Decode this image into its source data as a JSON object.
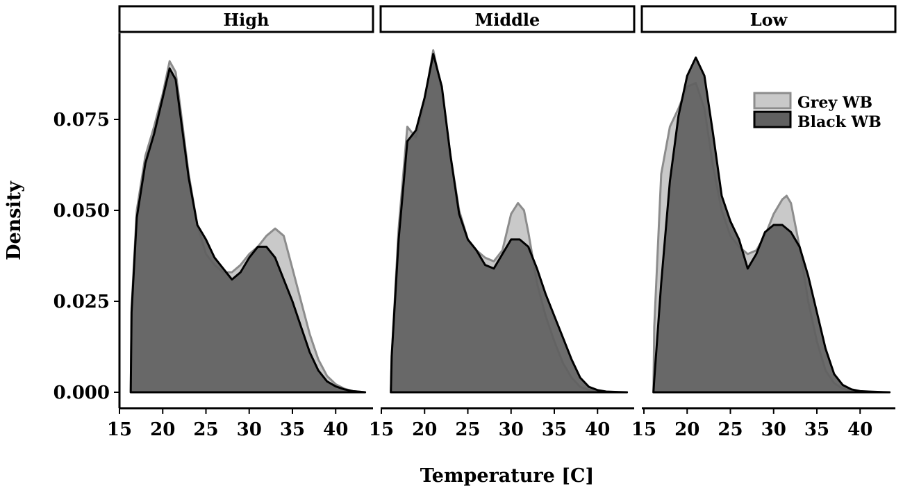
{
  "chart_data": {
    "type": "area",
    "xlabel": "Temperature [C]",
    "ylabel": "Density",
    "xlim": [
      15,
      44
    ],
    "ylim": [
      0,
      0.1
    ],
    "xticks": [
      "15",
      "20",
      "25",
      "30",
      "35",
      "40"
    ],
    "xtick_values": [
      15,
      20,
      25,
      30,
      35,
      40
    ],
    "yticks": [
      "0.000",
      "0.025",
      "0.050",
      "0.075"
    ],
    "ytick_values": [
      0,
      0.025,
      0.05,
      0.075
    ],
    "legend": {
      "position": "top-right",
      "entries": [
        "Grey WB",
        "Black WB"
      ]
    },
    "series_colors": {
      "Grey WB": "#c9c9c9",
      "Black WB": "#606060"
    },
    "series_edges": {
      "Grey WB": "#8c8c8c",
      "Black WB": "#000000"
    },
    "panels": [
      {
        "title": "High",
        "series": [
          {
            "name": "Grey WB",
            "x": [
              16.3,
              16.4,
              17,
              18,
              19,
              20,
              20.8,
              21.5,
              22,
              23,
              24,
              25,
              26,
              27,
              28,
              29,
              30,
              31,
              32,
              33,
              34,
              35,
              36,
              37,
              38,
              39,
              40,
              41,
              42,
              43.4
            ],
            "y": [
              0,
              0.023,
              0.05,
              0.065,
              0.073,
              0.082,
              0.091,
              0.088,
              0.079,
              0.06,
              0.046,
              0.038,
              0.035,
              0.033,
              0.033,
              0.035,
              0.038,
              0.04,
              0.043,
              0.045,
              0.043,
              0.034,
              0.025,
              0.016,
              0.009,
              0.0045,
              0.0022,
              0.001,
              0.0003,
              0
            ]
          },
          {
            "name": "Black WB",
            "x": [
              16.3,
              16.4,
              17,
              18,
              19,
              20,
              20.8,
              21.5,
              22,
              23,
              24,
              25,
              26,
              27,
              28,
              29,
              30,
              31,
              32,
              33,
              34,
              35,
              36,
              37,
              38,
              39,
              40,
              41,
              42,
              43.4
            ],
            "y": [
              0,
              0.022,
              0.048,
              0.063,
              0.071,
              0.081,
              0.089,
              0.086,
              0.077,
              0.059,
              0.046,
              0.042,
              0.037,
              0.034,
              0.031,
              0.033,
              0.037,
              0.04,
              0.04,
              0.037,
              0.031,
              0.025,
              0.018,
              0.011,
              0.006,
              0.003,
              0.0016,
              0.0008,
              0.0003,
              0
            ]
          }
        ]
      },
      {
        "title": "Middle",
        "series": [
          {
            "name": "Grey WB",
            "x": [
              16.1,
              16.2,
              17,
              18,
              19,
              20,
              21,
              22,
              23,
              24,
              25,
              26,
              27,
              28,
              29,
              30,
              30.8,
              31.5,
              32,
              33,
              34,
              35,
              36,
              37,
              38,
              39,
              40,
              41,
              42,
              43.4
            ],
            "y": [
              0,
              0.01,
              0.045,
              0.073,
              0.07,
              0.08,
              0.094,
              0.083,
              0.065,
              0.05,
              0.042,
              0.039,
              0.037,
              0.036,
              0.039,
              0.049,
              0.052,
              0.05,
              0.044,
              0.03,
              0.021,
              0.014,
              0.008,
              0.004,
              0.0015,
              0.0006,
              0.0003,
              0.0001,
              0,
              0
            ]
          },
          {
            "name": "Black WB",
            "x": [
              16.1,
              16.2,
              17,
              18,
              19,
              20,
              21,
              22,
              23,
              24,
              25,
              26,
              27,
              28,
              29,
              30,
              31,
              32,
              33,
              34,
              35,
              36,
              37,
              38,
              39,
              40,
              41,
              42,
              43.4
            ],
            "y": [
              0,
              0.01,
              0.042,
              0.069,
              0.072,
              0.081,
              0.093,
              0.084,
              0.065,
              0.049,
              0.042,
              0.039,
              0.035,
              0.034,
              0.038,
              0.042,
              0.042,
              0.04,
              0.034,
              0.027,
              0.021,
              0.015,
              0.009,
              0.004,
              0.0015,
              0.0006,
              0.0002,
              0.0001,
              0
            ]
          }
        ]
      },
      {
        "title": "Low",
        "series": [
          {
            "name": "Grey WB",
            "x": [
              16.1,
              16.2,
              17,
              18,
              19,
              20,
              21,
              22,
              23,
              24,
              25,
              26,
              27,
              28,
              29,
              30,
              31,
              31.5,
              32,
              33,
              34,
              35,
              36,
              37,
              38,
              39,
              40,
              41,
              42,
              43.4
            ],
            "y": [
              0,
              0.018,
              0.06,
              0.073,
              0.078,
              0.084,
              0.085,
              0.078,
              0.062,
              0.05,
              0.043,
              0.04,
              0.038,
              0.039,
              0.043,
              0.049,
              0.053,
              0.054,
              0.052,
              0.04,
              0.025,
              0.014,
              0.006,
              0.0025,
              0.001,
              0.0004,
              0.0002,
              0.0001,
              0,
              0
            ]
          },
          {
            "name": "Black WB",
            "x": [
              16.1,
              16.2,
              17,
              18,
              19,
              20,
              21,
              22,
              23,
              24,
              25,
              26,
              27,
              28,
              29,
              30,
              31,
              32,
              33,
              34,
              35,
              36,
              37,
              38,
              39,
              40,
              41,
              42,
              43.4
            ],
            "y": [
              0,
              0.0035,
              0.03,
              0.058,
              0.076,
              0.087,
              0.092,
              0.087,
              0.071,
              0.054,
              0.047,
              0.042,
              0.034,
              0.038,
              0.044,
              0.046,
              0.046,
              0.044,
              0.04,
              0.032,
              0.022,
              0.012,
              0.005,
              0.002,
              0.0008,
              0.0003,
              0.0002,
              0.0001,
              0
            ]
          }
        ]
      }
    ]
  }
}
